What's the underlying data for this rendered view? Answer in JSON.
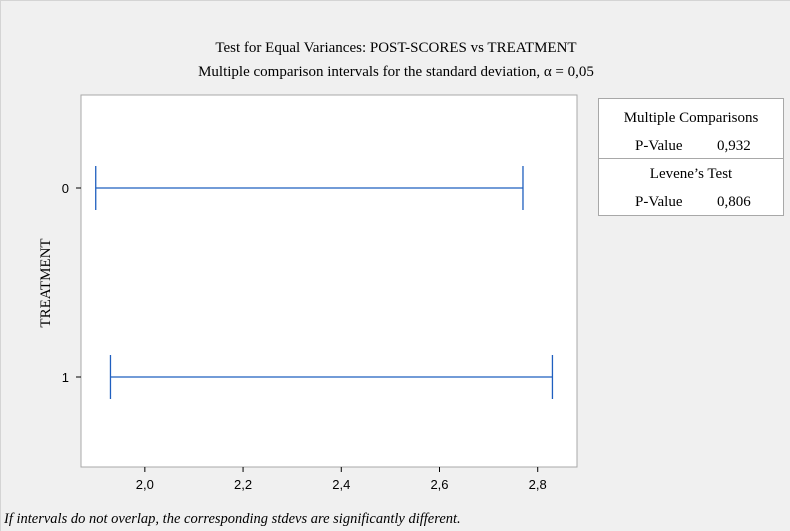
{
  "chart_data": {
    "type": "interval",
    "title": "Test for Equal Variances: POST-SCORES vs TREATMENT",
    "subtitle": "Multiple comparison intervals for the standard deviation, α = 0,05",
    "ylabel": "TREATMENT",
    "xlabel": "",
    "categories": [
      "0",
      "1"
    ],
    "x_ticks": [
      "2,0",
      "2,2",
      "2,4",
      "2,6",
      "2,8"
    ],
    "xlim": [
      1.87,
      2.88
    ],
    "intervals": [
      {
        "category": "0",
        "lower": 1.9,
        "upper": 2.77
      },
      {
        "category": "1",
        "lower": 1.93,
        "upper": 2.83
      }
    ],
    "series_color": "#1f5fbf",
    "grid": false,
    "legend_position": "top-right"
  },
  "results": {
    "multiple_comparisons": {
      "heading": "Multiple Comparisons",
      "label": "P-Value",
      "value": "0,932"
    },
    "levene": {
      "heading": "Levene’s Test",
      "label": "P-Value",
      "value": "0,806"
    }
  },
  "footnote": "If intervals do not overlap, the corresponding stdevs are significantly different."
}
